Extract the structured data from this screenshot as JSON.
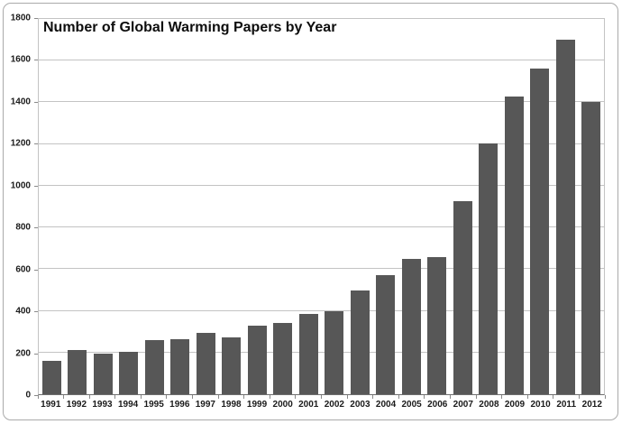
{
  "chart_data": {
    "type": "bar",
    "title": "Number of Global Warming Papers by Year",
    "categories": [
      "1991",
      "1992",
      "1993",
      "1994",
      "1995",
      "1996",
      "1997",
      "1998",
      "1999",
      "2000",
      "2001",
      "2002",
      "2003",
      "2004",
      "2005",
      "2006",
      "2007",
      "2008",
      "2009",
      "2010",
      "2011",
      "2012"
    ],
    "values": [
      160,
      211,
      196,
      205,
      258,
      264,
      294,
      272,
      330,
      341,
      386,
      398,
      496,
      570,
      650,
      658,
      924,
      1204,
      1430,
      1564,
      1700,
      1404
    ],
    "xlabel": "",
    "ylabel": "",
    "ylim": [
      0,
      1800
    ],
    "ytick_step": 200,
    "yticks": [
      0,
      200,
      400,
      600,
      800,
      1000,
      1200,
      1400,
      1600,
      1800
    ],
    "grid": "horizontal",
    "legend_position": "none",
    "colors": {
      "bar_fill": "#575757",
      "gridline": "#C3C3C3",
      "axis_line": "#6E6E6E",
      "label_text": "#1A1A1A",
      "title_text": "#0D0D0D",
      "frame_border": "#AAAAAA",
      "background": "#FFFFFF"
    }
  }
}
